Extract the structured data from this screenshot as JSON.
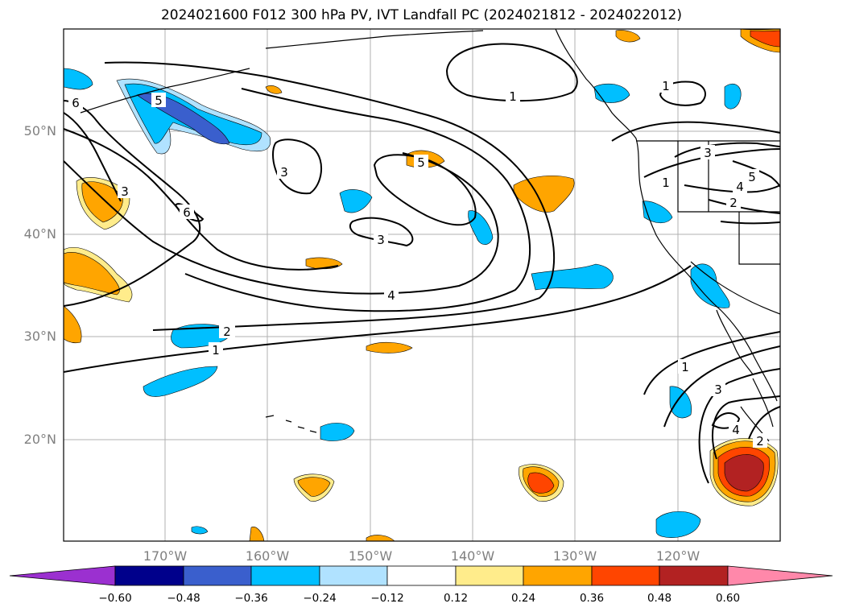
{
  "title": "2024021600 F012 300 hPa PV, IVT Landfall PC (2024021812 - 2024022012)",
  "lat_labels": [
    "50°N",
    "40°N",
    "30°N",
    "20°N"
  ],
  "lon_labels": [
    "170°W",
    "160°W",
    "150°W",
    "140°W",
    "130°W",
    "120°W"
  ],
  "contour_labels": [
    "1",
    "2",
    "3",
    "4",
    "5",
    "6"
  ],
  "colorbar": {
    "tick_labels": [
      "−0.60",
      "−0.48",
      "−0.36",
      "−0.24",
      "−0.12",
      "0.12",
      "0.24",
      "0.36",
      "0.48",
      "0.60"
    ],
    "colors": [
      "#9b30d0",
      "#00008b",
      "#3a5fcd",
      "#00bfff",
      "#b0e2ff",
      "#ffffff",
      "#ffec8b",
      "#ffa500",
      "#ff4500",
      "#b22222",
      "#ff88aa"
    ]
  },
  "shading_colors": {
    "neg_light": "#b0e2ff",
    "neg_mid": "#00bfff",
    "neg_strong": "#3a5fcd",
    "pos_light": "#ffec8b",
    "pos_mid": "#ffa500",
    "pos_strong": "#ff4500",
    "pos_max": "#b22222"
  }
}
